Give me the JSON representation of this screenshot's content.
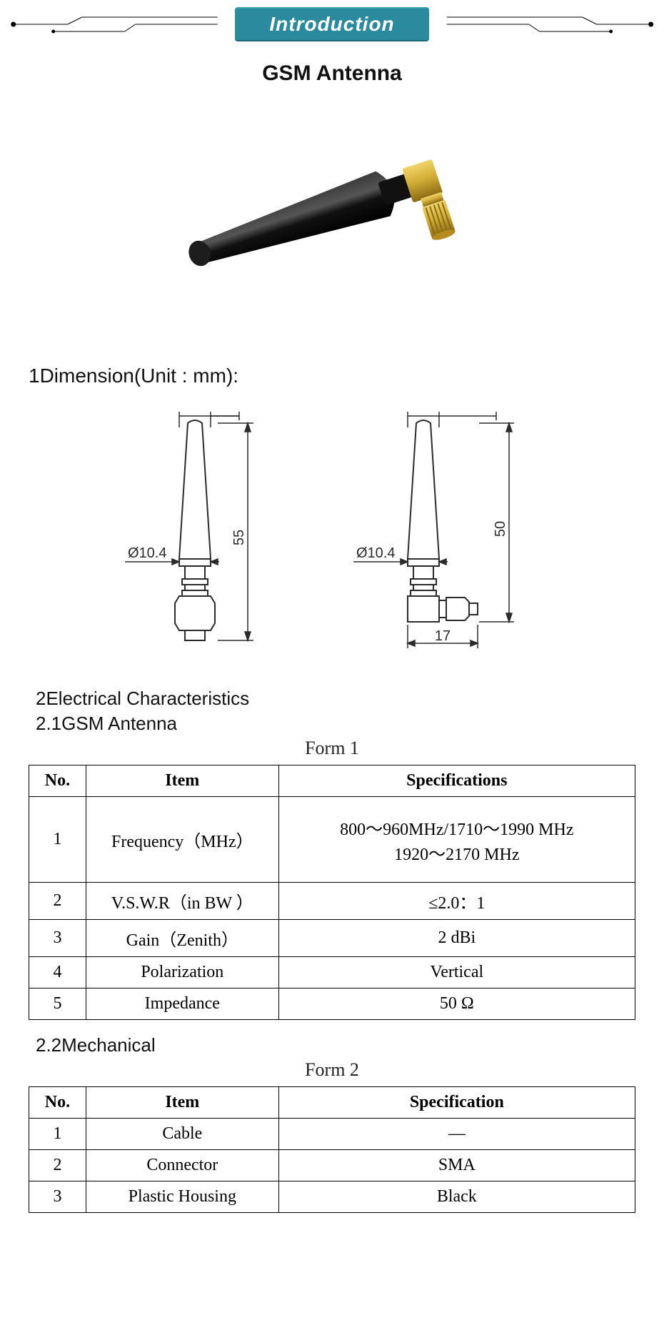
{
  "header": {
    "badge_label": "Introduction",
    "badge_bg": "#2a8a9e",
    "badge_text_color": "#ffffff"
  },
  "title": "GSM Antenna",
  "photo": {
    "body_color": "#1d1d1d",
    "connector_color_light": "#d4af37",
    "connector_color_dark": "#b58a1e"
  },
  "section1_label": "1Dimension(Unit : mm):",
  "drawings": {
    "stroke": "#2b2b2b",
    "fill": "#ffffff",
    "left": {
      "diameter_label": "Ø10.4",
      "height_label": "55"
    },
    "right": {
      "diameter_label": "Ø10.4",
      "height_label": "50",
      "width_label": "17"
    }
  },
  "section2_label": "2Electrical Characteristics",
  "section2_1_label": "2.1GSM Antenna",
  "form1_caption": "Form 1",
  "table1": {
    "headers": {
      "no": "No.",
      "item": "Item",
      "spec": "Specifications"
    },
    "rows": [
      {
        "no": "1",
        "item": "Frequency（MHz）",
        "spec": "800～960MHz/1710～1990 MHz\n1920～2170 MHz",
        "tall": true
      },
      {
        "no": "2",
        "item": "V.S.W.R（in BW ）",
        "spec": "≤2.0：1"
      },
      {
        "no": "3",
        "item": "Gain（Zenith）",
        "spec": "2 dBi"
      },
      {
        "no": "4",
        "item": "Polarization",
        "spec": "Vertical"
      },
      {
        "no": "5",
        "item": "Impedance",
        "spec": "50 Ω"
      }
    ]
  },
  "section2_2_label": "2.2Mechanical",
  "form2_caption": "Form 2",
  "table2": {
    "headers": {
      "no": "No.",
      "item": "Item",
      "spec": "Specification"
    },
    "rows": [
      {
        "no": "1",
        "item": "Cable",
        "spec": "—"
      },
      {
        "no": "2",
        "item": "Connector",
        "spec": "SMA"
      },
      {
        "no": "3",
        "item": "Plastic Housing",
        "spec": "Black"
      }
    ]
  }
}
